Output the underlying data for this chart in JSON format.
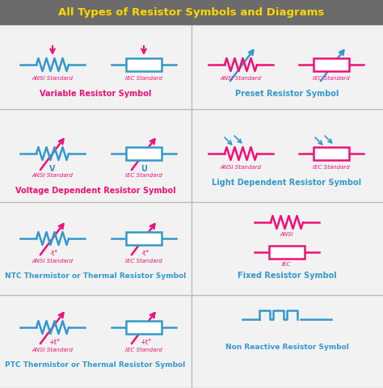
{
  "title": "All Types of Resistor Symbols and Diagrams",
  "title_color": "#FFD700",
  "title_bg": "#6B6B6B",
  "bg_color": "#F2F2F2",
  "cyan": "#3399CC",
  "magenta": "#EE1177",
  "blue_label": "#3399CC",
  "grid_color": "#BBBBBB",
  "sections": [
    {
      "title": "Variable Resistor Symbol",
      "title_color": "#EE1177"
    },
    {
      "title": "Preset Resistor Symbol",
      "title_color": "#3399CC"
    },
    {
      "title": "Voltage Dependent Resistor Symbol",
      "title_color": "#EE1177"
    },
    {
      "title": "Light Dependent Resistor Symbol",
      "title_color": "#3399CC"
    },
    {
      "title": "NTC Thermistor or Thermal Resistor Symbol",
      "title_color": "#3399CC"
    },
    {
      "title": "Fixed Resistor Symbol",
      "title_color": "#3399CC"
    },
    {
      "title": "PTC Thermistor or Thermal Resistor Symbol",
      "title_color": "#3399CC"
    },
    {
      "title": "Non Reactive Resistor Symbol",
      "title_color": "#3399CC"
    }
  ]
}
